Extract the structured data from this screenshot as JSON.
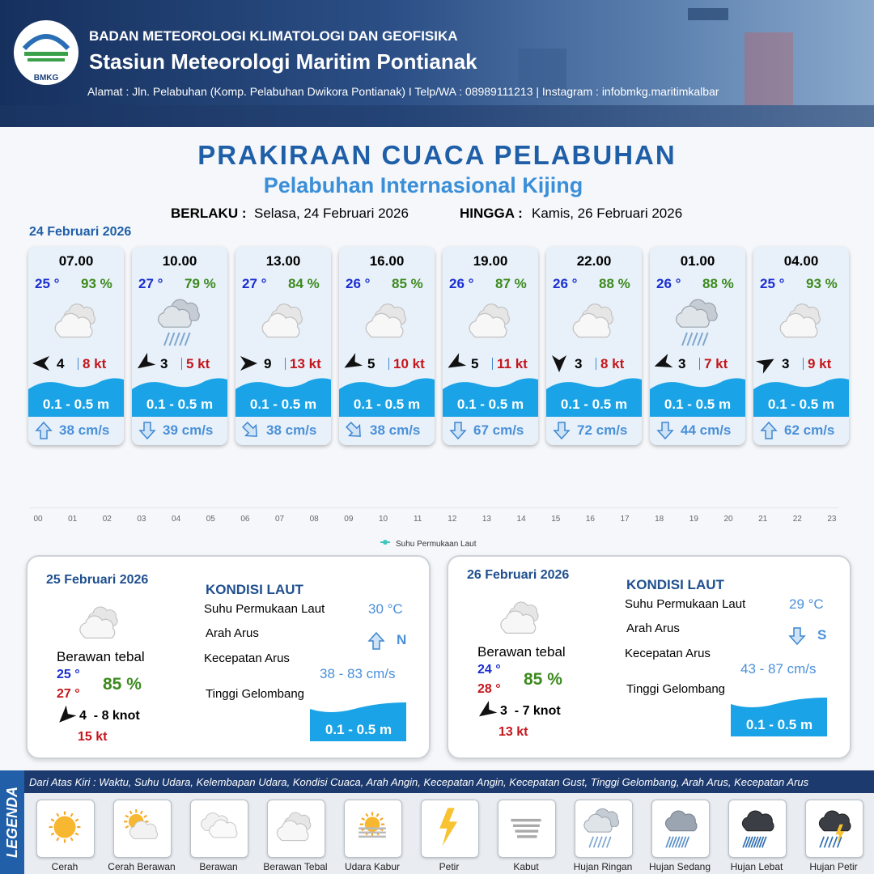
{
  "header": {
    "logo": "BMKG",
    "organization": "BADAN METEOROLOGI KLIMATOLOGI DAN GEOFISIKA",
    "station": "Stasiun Meteorologi Maritim Pontianak",
    "address": "Alamat : Jln. Pelabuhan (Komp. Pelabuhan Dwikora Pontianak) I Telp/WA : 08989111213 | Instagram : infobmkg.maritimkalbar"
  },
  "title": "PRAKIRAAN CUACA PELABUHAN",
  "subtitle": "Pelabuhan Internasional Kijing",
  "validity": {
    "from_label": "BERLAKU :",
    "from": "Selasa, 24 Februari 2026",
    "to_label": "HINGGA :",
    "to": "Kamis, 26 Februari 2026"
  },
  "day1": {
    "date": "24 Februari 2026",
    "slots": [
      {
        "time": "07.00",
        "temp": "25 °",
        "humidity": "93 %",
        "weather": "Berawan Tebal",
        "wind_dir": 270,
        "wind": "4",
        "gust": "8 kt",
        "wave": "0.1 - 0.5 m",
        "current_dir": 0,
        "current": "38 cm/s"
      },
      {
        "time": "10.00",
        "temp": "27 °",
        "humidity": "79 %",
        "weather": "Hujan Ringan",
        "wind_dir": 235,
        "wind": "3",
        "gust": "5 kt",
        "wave": "0.1 - 0.5 m",
        "current_dir": 180,
        "current": "39 cm/s"
      },
      {
        "time": "13.00",
        "temp": "27 °",
        "humidity": "84 %",
        "weather": "Berawan Tebal",
        "wind_dir": 90,
        "wind": "9",
        "gust": "13 kt",
        "wave": "0.1 - 0.5 m",
        "current_dir": 135,
        "current": "38 cm/s"
      },
      {
        "time": "16.00",
        "temp": "26 °",
        "humidity": "85 %",
        "weather": "Berawan Tebal",
        "wind_dir": 240,
        "wind": "5",
        "gust": "10 kt",
        "wave": "0.1 - 0.5 m",
        "current_dir": 135,
        "current": "38 cm/s"
      },
      {
        "time": "19.00",
        "temp": "26 °",
        "humidity": "87 %",
        "weather": "Berawan Tebal",
        "wind_dir": 240,
        "wind": "5",
        "gust": "11 kt",
        "wave": "0.1 - 0.5 m",
        "current_dir": 180,
        "current": "67 cm/s"
      },
      {
        "time": "22.00",
        "temp": "26 °",
        "humidity": "88 %",
        "weather": "Berawan Tebal",
        "wind_dir": 180,
        "wind": "3",
        "gust": "8 kt",
        "wave": "0.1 - 0.5 m",
        "current_dir": 180,
        "current": "72 cm/s"
      },
      {
        "time": "01.00",
        "temp": "26 °",
        "humidity": "88 %",
        "weather": "Hujan Ringan",
        "wind_dir": 250,
        "wind": "3",
        "gust": "7 kt",
        "wave": "0.1 - 0.5 m",
        "current_dir": 180,
        "current": "44 cm/s"
      },
      {
        "time": "04.00",
        "temp": "25 °",
        "humidity": "93 %",
        "weather": "Berawan Tebal",
        "wind_dir": 60,
        "wind": "3",
        "gust": "9 kt",
        "wave": "0.1 - 0.5 m",
        "current_dir": 0,
        "current": "62 cm/s"
      }
    ]
  },
  "sst_chart": {
    "xticks": [
      "00",
      "01",
      "02",
      "03",
      "04",
      "05",
      "06",
      "07",
      "08",
      "09",
      "10",
      "11",
      "12",
      "13",
      "14",
      "15",
      "16",
      "17",
      "18",
      "19",
      "20",
      "21",
      "22",
      "23"
    ],
    "legend": "Suhu Permukaan Laut"
  },
  "panels": [
    {
      "date": "25 Februari 2026",
      "condition": "Berawan tebal",
      "temp_min": "25 °",
      "temp_max": "27 °",
      "humidity": "85 %",
      "wind_dir": 225,
      "wind": "4  - 8 knot",
      "gust": "15 kt",
      "sea_title": "KONDISI LAUT",
      "sst_label": "Suhu Permukaan Laut",
      "sst": "30 °C",
      "current_dir_label": "Arah Arus",
      "current_dir_deg": 0,
      "current_dir": "N",
      "current_speed_label": "Kecepatan Arus",
      "current_speed": "38 - 83 cm/s",
      "wave_label": "Tinggi Gelombang",
      "wave": "0.1 - 0.5 m"
    },
    {
      "date": "26 Februari 2026",
      "condition": "Berawan tebal",
      "temp_min": "24 °",
      "temp_max": "28 °",
      "humidity": "85 %",
      "wind_dir": 235,
      "wind": "3  - 7 knot",
      "gust": "13 kt",
      "sea_title": "KONDISI LAUT",
      "sst_label": "Suhu Permukaan Laut",
      "sst": "29 °C",
      "current_dir_label": "Arah Arus",
      "current_dir_deg": 180,
      "current_dir": "S",
      "current_speed_label": "Kecepatan Arus",
      "current_speed": "43 - 87 cm/s",
      "wave_label": "Tinggi Gelombang",
      "wave": "0.1 - 0.5 m"
    }
  ],
  "legend": {
    "title": "LEGENDA",
    "description": "Dari Atas Kiri : Waktu, Suhu Udara, Kelembapan Udara, Kondisi Cuaca, Arah Angin, Kecepatan Angin, Kecepatan Gust, Tinggi Gelombang, Arah Arus, Kecepatan Arus",
    "items": [
      "Cerah",
      "Cerah Berawan",
      "Berawan",
      "Berawan Tebal",
      "Udara Kabur",
      "Petir",
      "Kabut",
      "Hujan Ringan",
      "Hujan Sedang",
      "Hujan Lebat",
      "Hujan Petir"
    ]
  }
}
